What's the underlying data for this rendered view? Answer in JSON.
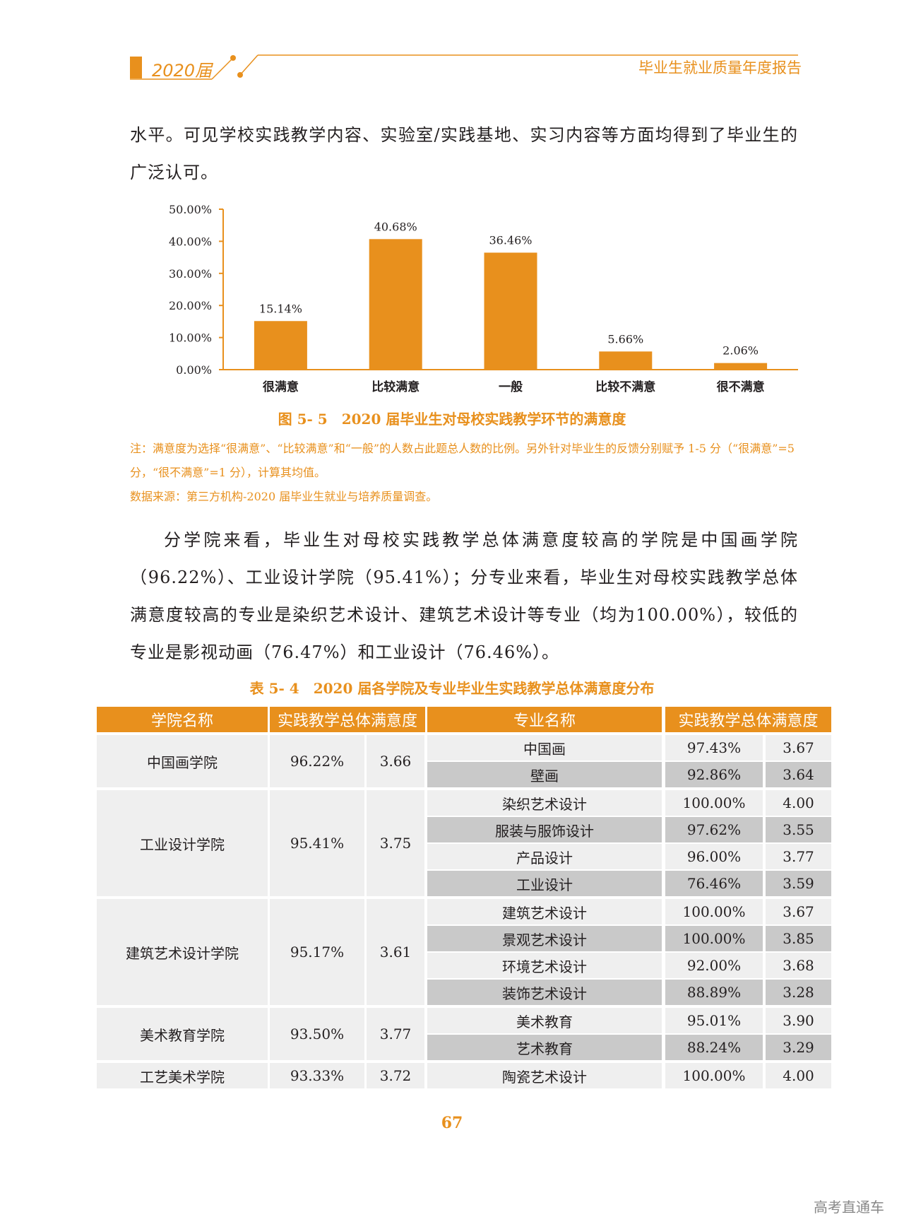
{
  "header": {
    "year": "2020届",
    "title": "毕业生就业质量年度报告"
  },
  "paragraphs": {
    "intro": "水平。可见学校实践教学内容、实验室/实践基地、实习内容等方面均得到了毕业生的广泛认可。",
    "analysis": "分学院来看，毕业生对母校实践教学总体满意度较高的学院是中国画学院（96.22%）、工业设计学院（95.41%）；分专业来看，毕业生对母校实践教学总体满意度较高的专业是染织艺术设计、建筑艺术设计等专业（均为100.00%），较低的专业是影视动画（76.47%）和工业设计（76.46%）。"
  },
  "figure": {
    "caption": "图 5- 5　2020 届毕业生对母校实践教学环节的满意度",
    "note1": "注：满意度为选择“很满意”、“比较满意”和“一般”的人数占此题总人数的比例。另外针对毕业生的反馈分别赋予 1-5 分（“很满意”=5 分，“很不满意”=1 分），计算其均值。",
    "note2": "数据来源：第三方机构-2020 届毕业生就业与培养质量调查。"
  },
  "chart_data": {
    "type": "bar",
    "categories": [
      "很满意",
      "比较满意",
      "一般",
      "比较不满意",
      "很不满意"
    ],
    "values": [
      15.14,
      40.68,
      36.46,
      5.66,
      2.06
    ],
    "value_labels": [
      "15.14%",
      "40.68%",
      "36.46%",
      "5.66%",
      "2.06%"
    ],
    "yticks": [
      "0.00%",
      "10.00%",
      "20.00%",
      "30.00%",
      "40.00%",
      "50.00%"
    ],
    "ylim": [
      0,
      50
    ],
    "bar_color": "#e8901d",
    "grid": false
  },
  "table": {
    "caption": "表 5- 4　2020 届各学院及专业毕业生实践教学总体满意度分布",
    "headers": {
      "college": "学院名称",
      "college_satisfaction": "实践教学总体满意度",
      "major": "专业名称",
      "major_satisfaction": "实践教学总体满意度"
    },
    "colleges": [
      {
        "name": "中国画学院",
        "rate": "96.22%",
        "score": "3.66",
        "majors": [
          {
            "name": "中国画",
            "rate": "97.43%",
            "score": "3.67"
          },
          {
            "name": "壁画",
            "rate": "92.86%",
            "score": "3.64"
          }
        ]
      },
      {
        "name": "工业设计学院",
        "rate": "95.41%",
        "score": "3.75",
        "majors": [
          {
            "name": "染织艺术设计",
            "rate": "100.00%",
            "score": "4.00"
          },
          {
            "name": "服装与服饰设计",
            "rate": "97.62%",
            "score": "3.55"
          },
          {
            "name": "产品设计",
            "rate": "96.00%",
            "score": "3.77"
          },
          {
            "name": "工业设计",
            "rate": "76.46%",
            "score": "3.59"
          }
        ]
      },
      {
        "name": "建筑艺术设计学院",
        "rate": "95.17%",
        "score": "3.61",
        "majors": [
          {
            "name": "建筑艺术设计",
            "rate": "100.00%",
            "score": "3.67"
          },
          {
            "name": "景观艺术设计",
            "rate": "100.00%",
            "score": "3.85"
          },
          {
            "name": "环境艺术设计",
            "rate": "92.00%",
            "score": "3.68"
          },
          {
            "name": "装饰艺术设计",
            "rate": "88.89%",
            "score": "3.28"
          }
        ]
      },
      {
        "name": "美术教育学院",
        "rate": "93.50%",
        "score": "3.77",
        "majors": [
          {
            "name": "美术教育",
            "rate": "95.01%",
            "score": "3.90"
          },
          {
            "name": "艺术教育",
            "rate": "88.24%",
            "score": "3.29"
          }
        ]
      },
      {
        "name": "工艺美术学院",
        "rate": "93.33%",
        "score": "3.72",
        "majors": [
          {
            "name": "陶瓷艺术设计",
            "rate": "100.00%",
            "score": "4.00"
          }
        ]
      }
    ]
  },
  "page_number": "67",
  "watermark": "高考直通车",
  "colors": {
    "accent": "#e8901d",
    "row_light": "#efefef",
    "row_dark": "#c9c9c9"
  }
}
